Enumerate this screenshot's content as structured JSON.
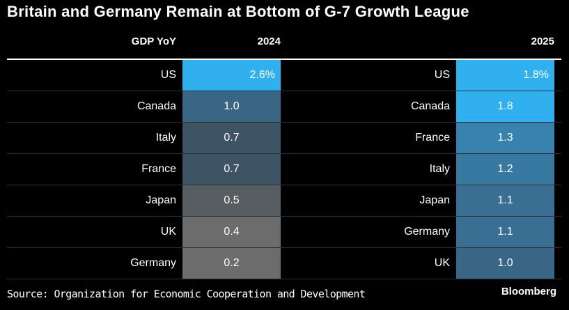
{
  "title": "Britain and Germany Remain at Bottom of G-7 Growth League",
  "chart_data": {
    "type": "table",
    "title": "Britain and Germany Remain at Bottom of G-7 Growth League",
    "column_label": "GDP YoY",
    "tables": [
      {
        "year": "2024",
        "rows": [
          {
            "country": "US",
            "value": 2.6,
            "label": "2.6%"
          },
          {
            "country": "Canada",
            "value": 1.0,
            "label": "1.0"
          },
          {
            "country": "Italy",
            "value": 0.7,
            "label": "0.7"
          },
          {
            "country": "France",
            "value": 0.7,
            "label": "0.7"
          },
          {
            "country": "Japan",
            "value": 0.5,
            "label": "0.5"
          },
          {
            "country": "UK",
            "value": 0.4,
            "label": "0.4"
          },
          {
            "country": "Germany",
            "value": 0.2,
            "label": "0.2"
          }
        ]
      },
      {
        "year": "2025",
        "rows": [
          {
            "country": "US",
            "value": 1.8,
            "label": "1.8%"
          },
          {
            "country": "Canada",
            "value": 1.8,
            "label": "1.8"
          },
          {
            "country": "France",
            "value": 1.3,
            "label": "1.3"
          },
          {
            "country": "Italy",
            "value": 1.2,
            "label": "1.2"
          },
          {
            "country": "Japan",
            "value": 1.1,
            "label": "1.1"
          },
          {
            "country": "Germany",
            "value": 1.1,
            "label": "1.1"
          },
          {
            "country": "UK",
            "value": 1.0,
            "label": "1.0"
          }
        ]
      }
    ]
  },
  "colors": {
    "high": "#31b0f0",
    "mid_high": "#2f7cb0",
    "mid": "#3a6686",
    "low_blue": "#3c5464",
    "gray": "#585d61",
    "light_gray": "#6c6c6c"
  },
  "footer": {
    "source": "Source: Organization for Economic Cooperation and Development",
    "brand": "Bloomberg"
  }
}
